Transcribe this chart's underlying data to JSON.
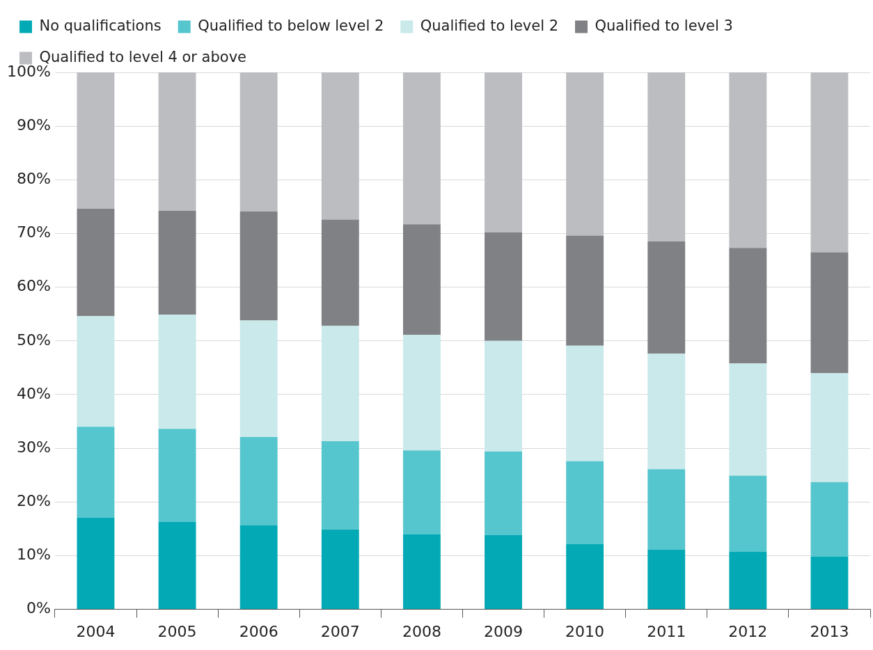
{
  "chart_data": {
    "type": "bar",
    "stacked": true,
    "categories": [
      "2004",
      "2005",
      "2006",
      "2007",
      "2008",
      "2009",
      "2010",
      "2011",
      "2012",
      "2013"
    ],
    "series": [
      {
        "name": "No qualifications",
        "color": "#03aab5",
        "values": [
          17.1,
          16.3,
          15.7,
          14.9,
          14.0,
          13.8,
          12.2,
          11.1,
          10.7,
          9.8
        ]
      },
      {
        "name": "Qualified to below level 2",
        "color": "#55c5ce",
        "values": [
          16.9,
          17.3,
          16.4,
          16.4,
          15.6,
          15.6,
          15.4,
          15.0,
          14.2,
          13.9
        ]
      },
      {
        "name": "Qualified to level 2",
        "color": "#c9e9ea",
        "values": [
          20.6,
          21.3,
          21.7,
          21.5,
          21.5,
          20.6,
          21.5,
          21.5,
          20.9,
          20.3
        ]
      },
      {
        "name": "Qualified to level 3",
        "color": "#808184",
        "values": [
          20.0,
          19.3,
          20.3,
          19.8,
          20.6,
          20.2,
          20.5,
          20.9,
          21.5,
          22.5
        ]
      },
      {
        "name": "Qualified to level 4 or above",
        "color": "#bcbdc0",
        "values": [
          25.4,
          25.8,
          25.9,
          27.4,
          28.3,
          29.8,
          30.4,
          31.5,
          32.7,
          33.5
        ]
      }
    ],
    "ylim": [
      0,
      100
    ],
    "yticks": [
      {
        "value": 0,
        "label": "0%"
      },
      {
        "value": 10,
        "label": "10%"
      },
      {
        "value": 20,
        "label": "20%"
      },
      {
        "value": 30,
        "label": "30%"
      },
      {
        "value": 40,
        "label": "40%"
      },
      {
        "value": 50,
        "label": "50%"
      },
      {
        "value": 60,
        "label": "60%"
      },
      {
        "value": 70,
        "label": "70%"
      },
      {
        "value": 80,
        "label": "80%"
      },
      {
        "value": 90,
        "label": "90%"
      },
      {
        "value": 100,
        "label": "100%"
      }
    ],
    "grid": "y",
    "legend": "top left"
  }
}
